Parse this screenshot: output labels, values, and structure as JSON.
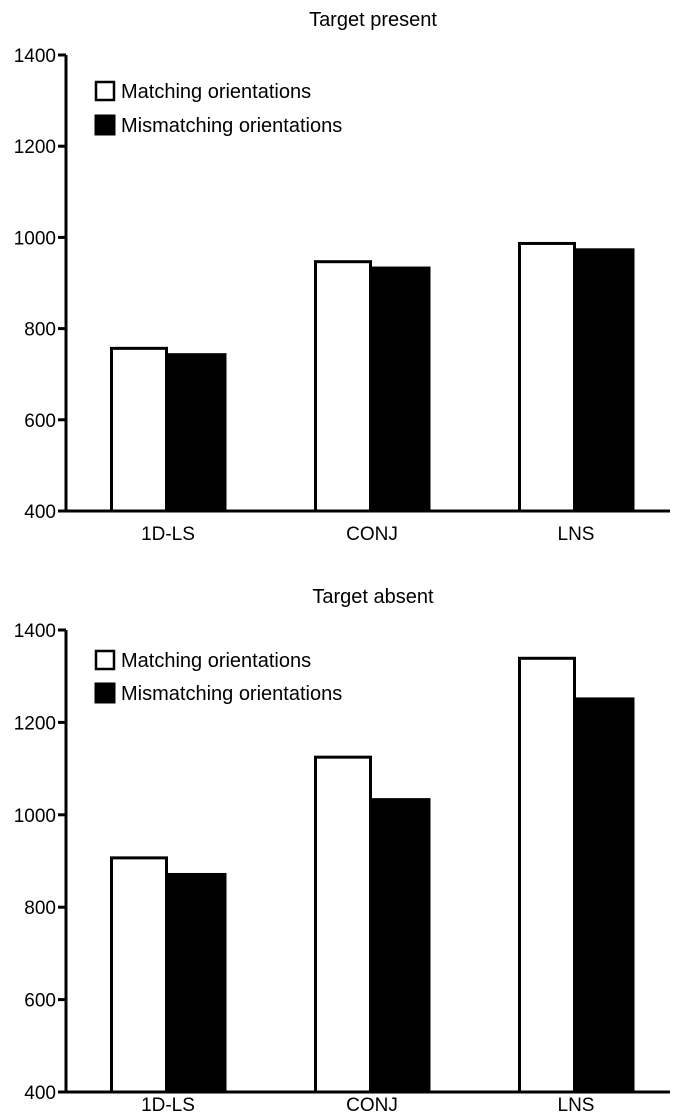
{
  "chart_data": [
    {
      "type": "bar",
      "title": "Target present",
      "xlabel": "",
      "ylabel": "",
      "ylim": [
        400,
        1400
      ],
      "yticks": [
        400,
        600,
        800,
        1000,
        1200,
        1400
      ],
      "categories": [
        "1D-LS",
        "CONJ",
        "LNS"
      ],
      "series": [
        {
          "name": "Matching orientations",
          "values": [
            760,
            950,
            990
          ],
          "fill": "#ffffff"
        },
        {
          "name": "Mismatching orientations",
          "values": [
            745,
            935,
            975
          ],
          "fill": "#000000"
        }
      ],
      "legend_position": "top-left",
      "grid": false
    },
    {
      "type": "bar",
      "title": "Target absent",
      "xlabel": "",
      "ylabel": "",
      "ylim": [
        400,
        1400
      ],
      "yticks": [
        400,
        600,
        800,
        1000,
        1200,
        1400
      ],
      "categories": [
        "1D-LS",
        "CONJ",
        "LNS"
      ],
      "series": [
        {
          "name": "Matching orientations",
          "values": [
            910,
            1128,
            1342
          ],
          "fill": "#ffffff"
        },
        {
          "name": "Mismatching orientations",
          "values": [
            873,
            1035,
            1253
          ],
          "fill": "#000000"
        }
      ],
      "legend_position": "top-left",
      "grid": false
    }
  ]
}
